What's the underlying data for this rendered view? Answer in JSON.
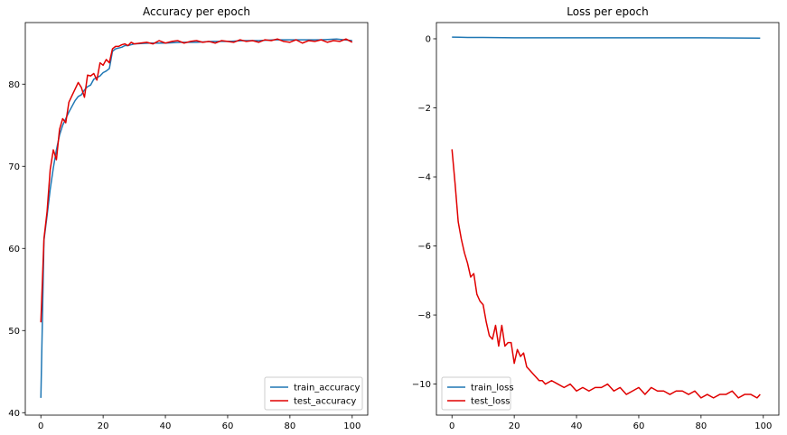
{
  "chart_data": [
    {
      "type": "line",
      "title": "Accuracy per epoch",
      "xlabel": "",
      "ylabel": "",
      "xlim": [
        -5,
        105
      ],
      "ylim": [
        39.7,
        87.5
      ],
      "xticks": [
        0,
        20,
        40,
        60,
        80,
        100
      ],
      "xtick_labels": [
        "0",
        "20",
        "40",
        "60",
        "80",
        "100"
      ],
      "yticks": [
        40,
        50,
        60,
        70,
        80
      ],
      "ytick_labels": [
        "40",
        "50",
        "60",
        "70",
        "80"
      ],
      "grid": false,
      "legend_placement": "lower-right",
      "series": [
        {
          "name": "train_accuracy",
          "color": "#1f77b4",
          "x": [
            0,
            1,
            2,
            3,
            4,
            5,
            6,
            7,
            8,
            9,
            10,
            11,
            12,
            13,
            14,
            15,
            16,
            17,
            18,
            19,
            20,
            21,
            22,
            23,
            24,
            25,
            26,
            27,
            28,
            29,
            30,
            35,
            40,
            45,
            50,
            55,
            60,
            65,
            70,
            75,
            80,
            85,
            90,
            95,
            100
          ],
          "y": [
            41.8,
            61.0,
            64.0,
            67.2,
            69.8,
            72.0,
            73.8,
            75.0,
            75.8,
            76.6,
            77.3,
            78.0,
            78.5,
            78.7,
            79.3,
            79.7,
            79.9,
            80.6,
            80.8,
            81.0,
            81.4,
            81.6,
            81.9,
            84.0,
            84.3,
            84.4,
            84.5,
            84.7,
            84.7,
            84.8,
            84.9,
            85.0,
            85.0,
            85.1,
            85.1,
            85.2,
            85.2,
            85.3,
            85.3,
            85.4,
            85.4,
            85.4,
            85.4,
            85.5,
            85.3
          ]
        },
        {
          "name": "test_accuracy",
          "color": "#e00000",
          "x": [
            0,
            1,
            2,
            3,
            4,
            5,
            6,
            7,
            8,
            9,
            10,
            11,
            12,
            13,
            14,
            15,
            16,
            17,
            18,
            19,
            20,
            21,
            22,
            23,
            24,
            25,
            26,
            27,
            28,
            29,
            30,
            32,
            34,
            36,
            38,
            40,
            42,
            44,
            46,
            48,
            50,
            52,
            54,
            56,
            58,
            60,
            62,
            64,
            66,
            68,
            70,
            72,
            74,
            76,
            78,
            80,
            82,
            84,
            86,
            88,
            90,
            92,
            94,
            96,
            98,
            100
          ],
          "y": [
            51.0,
            61.2,
            64.5,
            69.6,
            72.0,
            70.8,
            74.5,
            75.8,
            75.3,
            77.8,
            78.6,
            79.4,
            80.2,
            79.6,
            78.4,
            81.1,
            81.0,
            81.3,
            80.5,
            82.6,
            82.3,
            83.0,
            82.6,
            84.3,
            84.6,
            84.6,
            84.8,
            84.9,
            84.7,
            85.1,
            84.9,
            85.0,
            85.1,
            84.9,
            85.3,
            85.0,
            85.2,
            85.3,
            85.0,
            85.2,
            85.3,
            85.1,
            85.2,
            85.0,
            85.3,
            85.2,
            85.1,
            85.4,
            85.2,
            85.3,
            85.1,
            85.4,
            85.3,
            85.5,
            85.2,
            85.1,
            85.4,
            85.0,
            85.3,
            85.2,
            85.4,
            85.1,
            85.3,
            85.2,
            85.5,
            85.1
          ]
        }
      ]
    },
    {
      "type": "line",
      "title": "Loss per epoch",
      "xlabel": "",
      "ylabel": "",
      "xlim": [
        -5,
        105
      ],
      "ylim": [
        -10.9,
        0.47
      ],
      "xticks": [
        0,
        20,
        40,
        60,
        80,
        100
      ],
      "xtick_labels": [
        "0",
        "20",
        "40",
        "60",
        "80",
        "100"
      ],
      "yticks": [
        0,
        -2,
        -4,
        -6,
        -8,
        -10
      ],
      "ytick_labels": [
        "0",
        "−2",
        "−4",
        "−6",
        "−8",
        "−10"
      ],
      "grid": false,
      "legend_placement": "lower-left",
      "series": [
        {
          "name": "train_loss",
          "color": "#1f77b4",
          "x": [
            0,
            5,
            10,
            20,
            40,
            60,
            80,
            99
          ],
          "y": [
            0.05,
            0.04,
            0.04,
            0.03,
            0.03,
            0.03,
            0.03,
            0.02
          ]
        },
        {
          "name": "test_loss",
          "color": "#e00000",
          "x": [
            0,
            1,
            2,
            3,
            4,
            5,
            6,
            7,
            8,
            9,
            10,
            11,
            12,
            13,
            14,
            15,
            16,
            17,
            18,
            19,
            20,
            21,
            22,
            23,
            24,
            25,
            26,
            27,
            28,
            29,
            30,
            32,
            34,
            36,
            38,
            40,
            42,
            44,
            46,
            48,
            50,
            52,
            54,
            56,
            58,
            60,
            62,
            64,
            66,
            68,
            70,
            72,
            74,
            76,
            78,
            80,
            82,
            84,
            86,
            88,
            90,
            92,
            94,
            96,
            98,
            99
          ],
          "y": [
            -3.2,
            -4.2,
            -5.3,
            -5.8,
            -6.2,
            -6.5,
            -6.9,
            -6.8,
            -7.4,
            -7.6,
            -7.7,
            -8.2,
            -8.6,
            -8.7,
            -8.3,
            -8.9,
            -8.3,
            -8.9,
            -8.8,
            -8.8,
            -9.4,
            -9.0,
            -9.2,
            -9.1,
            -9.5,
            -9.6,
            -9.7,
            -9.8,
            -9.9,
            -9.9,
            -10.0,
            -9.9,
            -10.0,
            -10.1,
            -10.0,
            -10.2,
            -10.1,
            -10.2,
            -10.1,
            -10.1,
            -10.0,
            -10.2,
            -10.1,
            -10.3,
            -10.2,
            -10.1,
            -10.3,
            -10.1,
            -10.2,
            -10.2,
            -10.3,
            -10.2,
            -10.2,
            -10.3,
            -10.2,
            -10.4,
            -10.3,
            -10.4,
            -10.3,
            -10.3,
            -10.2,
            -10.4,
            -10.3,
            -10.3,
            -10.4,
            -10.3
          ]
        }
      ]
    }
  ]
}
